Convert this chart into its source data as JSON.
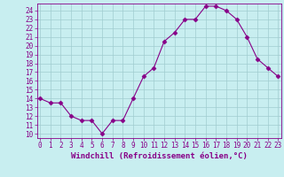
{
  "x": [
    0,
    1,
    2,
    3,
    4,
    5,
    6,
    7,
    8,
    9,
    10,
    11,
    12,
    13,
    14,
    15,
    16,
    17,
    18,
    19,
    20,
    21,
    22,
    23
  ],
  "y": [
    14,
    13.5,
    13.5,
    12,
    11.5,
    11.5,
    10,
    11.5,
    11.5,
    14,
    16.5,
    17.5,
    20.5,
    21.5,
    23,
    23,
    24.5,
    24.5,
    24,
    23,
    21,
    18.5,
    17.5,
    16.5
  ],
  "xlabel": "Windchill (Refroidissement éolien,°C)",
  "xlim_low": -0.3,
  "xlim_high": 23.3,
  "ylim_low": 9.5,
  "ylim_high": 24.8,
  "yticks": [
    10,
    11,
    12,
    13,
    14,
    15,
    16,
    17,
    18,
    19,
    20,
    21,
    22,
    23,
    24
  ],
  "xticks": [
    0,
    1,
    2,
    3,
    4,
    5,
    6,
    7,
    8,
    9,
    10,
    11,
    12,
    13,
    14,
    15,
    16,
    17,
    18,
    19,
    20,
    21,
    22,
    23
  ],
  "line_color": "#880088",
  "marker": "D",
  "marker_size": 2.5,
  "bg_color": "#c8eef0",
  "grid_color": "#a0ccd0",
  "xlabel_fontsize": 6.5,
  "tick_fontsize": 5.5,
  "font_family": "monospace"
}
